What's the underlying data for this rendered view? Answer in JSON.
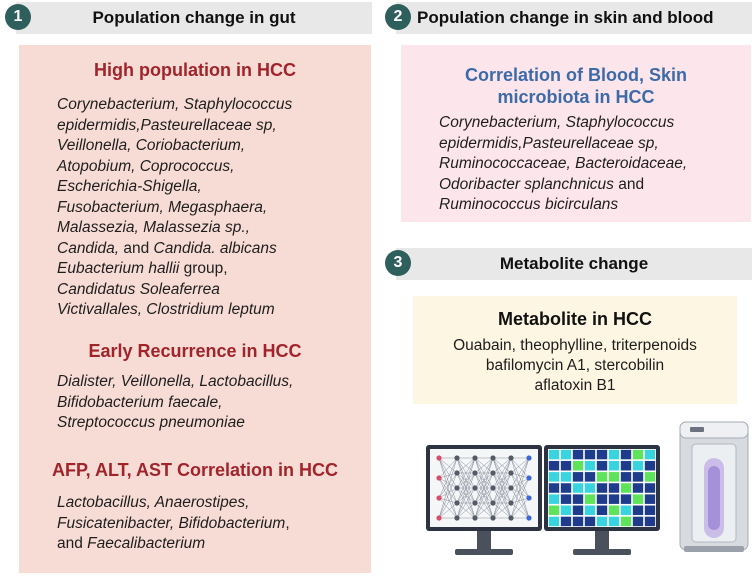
{
  "panel1": {
    "number": "1",
    "header": "Population change in gut",
    "section_high": {
      "title": "High population in HCC",
      "lines": [
        [
          {
            "t": "Corynebacterium, Staphylococcus",
            "i": true
          }
        ],
        [
          {
            "t": "epidermidis,Pasteurellaceae sp,",
            "i": true
          }
        ],
        [
          {
            "t": "Veillonella, Coriobacterium,",
            "i": true
          }
        ],
        [
          {
            "t": "Atopobium, Coprococcus,",
            "i": true
          }
        ],
        [
          {
            "t": "Escherichia-Shigella,",
            "i": true
          }
        ],
        [
          {
            "t": "Fusobacterium, Megasphaera,",
            "i": true
          }
        ],
        [
          {
            "t": "Malassezia, Malassezia sp.,",
            "i": true
          }
        ],
        [
          {
            "t": "Candida,",
            "i": true
          },
          {
            "t": " and ",
            "i": false
          },
          {
            "t": "Candida. albicans",
            "i": true
          }
        ],
        [
          {
            "t": "Eubacterium hallii",
            "i": true
          },
          {
            "t": " group,",
            "i": false
          }
        ],
        [
          {
            "t": "Candidatus Soleaferrea",
            "i": true
          }
        ],
        [
          {
            "t": "Victivallales, Clostridium leptum",
            "i": true
          }
        ]
      ]
    },
    "section_early": {
      "title": "Early Recurrence in HCC",
      "lines": [
        [
          {
            "t": "Dialister, Veillonella, Lactobacillus,",
            "i": true
          }
        ],
        [
          {
            "t": "Bifidobacterium faecale,",
            "i": true
          }
        ],
        [
          {
            "t": "Streptococcus pneumoniae",
            "i": true
          }
        ]
      ]
    },
    "section_afp": {
      "title": "AFP, ALT, AST Correlation in HCC",
      "lines": [
        [
          {
            "t": "Lactobacillus, Anaerostipes,",
            "i": true
          }
        ],
        [
          {
            "t": "Fusicatenibacter, Bifidobacterium",
            "i": true
          },
          {
            "t": ",",
            "i": false
          }
        ],
        [
          {
            "t": "and ",
            "i": false
          },
          {
            "t": "Faecalibacterium",
            "i": true
          }
        ]
      ]
    }
  },
  "panel2": {
    "number": "2",
    "header": "Population change in skin and blood",
    "title_line1": "Correlation of Blood, Skin",
    "title_line2": "microbiota in HCC",
    "lines": [
      [
        {
          "t": "Corynebacterium, Staphylococcus",
          "i": true
        }
      ],
      [
        {
          "t": "epidermidis,Pasteurellaceae sp,",
          "i": true
        }
      ],
      [
        {
          "t": "Ruminococcaceae, Bacteroidaceae,",
          "i": true
        }
      ],
      [
        {
          "t": "Odoribacter splanchnicus",
          "i": true
        },
        {
          "t": " and",
          "i": false
        }
      ],
      [
        {
          "t": "Ruminococcus bicirculans",
          "i": true
        }
      ]
    ]
  },
  "panel3": {
    "number": "3",
    "header": "Metabolite change",
    "title": "Metabolite in HCC",
    "lines": [
      "Ouabain, theophylline, triterpenoids",
      "bafilomycin A1,  stercobilin",
      "aflatoxin B1"
    ]
  },
  "illustrations": {
    "icons": [
      "neural-network-monitor-icon",
      "heatmap-monitor-icon",
      "mass-spectrometer-icon"
    ],
    "colors": {
      "heatmap_dark": "#1f3b8c",
      "heatmap_light": "#39d4e0",
      "heatmap_green": "#5fe35a",
      "node_red": "#d94d6a",
      "node_blue": "#3d6ad1"
    }
  },
  "colors": {
    "circle": "#2f5f5c",
    "header_bg": "#e8e8e8",
    "gut_bg": "#f7dcd5",
    "skin_bg": "#fce6ec",
    "metabolite_bg": "#fdf6e3",
    "red_title": "#a2242b",
    "blue_title": "#3d6aa8"
  }
}
